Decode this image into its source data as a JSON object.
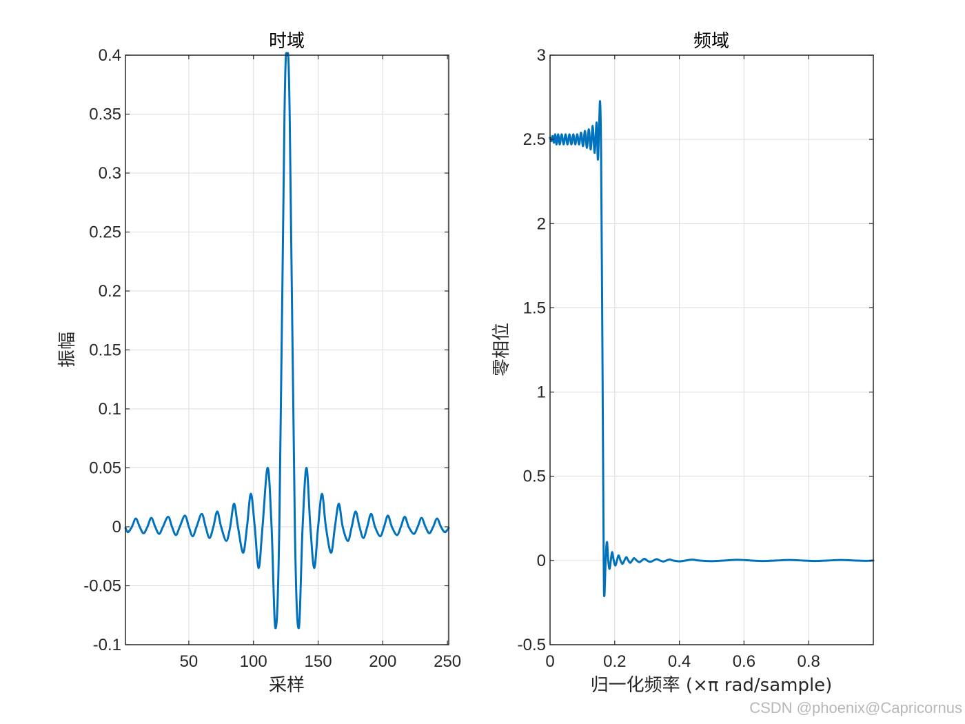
{
  "chart_data": [
    {
      "type": "line",
      "title": "时域",
      "xlabel": "采样",
      "ylabel": "振幅",
      "xlim": [
        1,
        251
      ],
      "ylim": [
        -0.1,
        0.4
      ],
      "xticks": [
        50,
        100,
        150,
        200,
        250
      ],
      "yticks": [
        -0.1,
        -0.05,
        0,
        0.05,
        0.1,
        0.15,
        0.2,
        0.25,
        0.3,
        0.35,
        0.4
      ],
      "ytick_labels": [
        "-0.1",
        "-0.05",
        "0",
        "0.05",
        "0.1",
        "0.15",
        "0.2",
        "0.25",
        "0.3",
        "0.35",
        "0.4"
      ],
      "xtick_labels": [
        "50",
        "100",
        "150",
        "200",
        "250"
      ],
      "grid": true,
      "series_color": "#0072BD",
      "series": [
        {
          "points": [
            [
              1,
              -0.001
            ],
            [
              3,
              -0.0045
            ],
            [
              6,
              0.0
            ],
            [
              9,
              0.007
            ],
            [
              12,
              0.0
            ],
            [
              15,
              -0.0055
            ],
            [
              18,
              0.0
            ],
            [
              21,
              0.0075
            ],
            [
              24,
              0.0
            ],
            [
              27,
              -0.006
            ],
            [
              30,
              0.0
            ],
            [
              34,
              0.0085
            ],
            [
              37,
              0.0
            ],
            [
              40,
              -0.007
            ],
            [
              43,
              0.0
            ],
            [
              47,
              0.0095
            ],
            [
              50,
              0.0
            ],
            [
              53,
              -0.008
            ],
            [
              56,
              0.0
            ],
            [
              60,
              0.011
            ],
            [
              63,
              0.0
            ],
            [
              66,
              -0.0095
            ],
            [
              69,
              0.0
            ],
            [
              72,
              0.013
            ],
            [
              75,
              0.0
            ],
            [
              79,
              -0.012
            ],
            [
              82,
              0.0
            ],
            [
              85,
              0.0195
            ],
            [
              88,
              0.0
            ],
            [
              92,
              -0.022
            ],
            [
              95,
              0.0
            ],
            [
              98,
              0.028
            ],
            [
              101,
              0.0
            ],
            [
              104,
              -0.035
            ],
            [
              107,
              0.0
            ],
            [
              111,
              0.05
            ],
            [
              114,
              0.0
            ],
            [
              117,
              -0.086
            ],
            [
              120,
              0.0
            ],
            [
              124,
              0.35
            ],
            [
              126,
              0.4
            ],
            [
              128,
              0.35
            ],
            [
              132,
              0.0
            ],
            [
              135,
              -0.086
            ],
            [
              138,
              0.0
            ],
            [
              141,
              0.05
            ],
            [
              144,
              0.0
            ],
            [
              147,
              -0.035
            ],
            [
              150,
              0.0
            ],
            [
              153,
              0.028
            ],
            [
              156,
              0.0
            ],
            [
              160,
              -0.022
            ],
            [
              163,
              0.0
            ],
            [
              166,
              0.0195
            ],
            [
              169,
              0.0
            ],
            [
              173,
              -0.012
            ],
            [
              176,
              0.0
            ],
            [
              179,
              0.013
            ],
            [
              182,
              0.0
            ],
            [
              185,
              -0.0095
            ],
            [
              188,
              0.0
            ],
            [
              191,
              0.011
            ],
            [
              194,
              0.0
            ],
            [
              198,
              -0.008
            ],
            [
              201,
              0.0
            ],
            [
              204,
              0.0095
            ],
            [
              207,
              0.0
            ],
            [
              211,
              -0.007
            ],
            [
              214,
              0.0
            ],
            [
              217,
              0.0085
            ],
            [
              220,
              0.0
            ],
            [
              224,
              -0.006
            ],
            [
              227,
              0.0
            ],
            [
              230,
              0.0075
            ],
            [
              233,
              0.0
            ],
            [
              236,
              -0.0055
            ],
            [
              239,
              0.0
            ],
            [
              242,
              0.007
            ],
            [
              245,
              0.0
            ],
            [
              248,
              -0.0045
            ],
            [
              251,
              -0.001
            ]
          ]
        }
      ]
    },
    {
      "type": "line",
      "title": "频域",
      "xlabel": "归一化频率  (×π rad/sample)",
      "ylabel": "零相位",
      "xlim": [
        0,
        1
      ],
      "ylim": [
        -0.5,
        3
      ],
      "xticks": [
        0,
        0.2,
        0.4,
        0.6,
        0.8
      ],
      "xtick_labels": [
        "0",
        "0.2",
        "0.4",
        "0.6",
        "0.8"
      ],
      "yticks": [
        -0.5,
        0,
        0.5,
        1,
        1.5,
        2,
        2.5,
        3
      ],
      "ytick_labels": [
        "-0.5",
        "0",
        "0.5",
        "1",
        "1.5",
        "2",
        "2.5",
        "3"
      ],
      "grid": true,
      "series_color": "#0072BD",
      "series": [
        {
          "points": [
            [
              0,
              2.51
            ],
            [
              0.004,
              2.49
            ],
            [
              0.008,
              2.52
            ],
            [
              0.012,
              2.48
            ],
            [
              0.016,
              2.53
            ],
            [
              0.02,
              2.47
            ],
            [
              0.025,
              2.53
            ],
            [
              0.03,
              2.47
            ],
            [
              0.036,
              2.53
            ],
            [
              0.042,
              2.47
            ],
            [
              0.048,
              2.53
            ],
            [
              0.054,
              2.47
            ],
            [
              0.06,
              2.53
            ],
            [
              0.066,
              2.47
            ],
            [
              0.072,
              2.53
            ],
            [
              0.078,
              2.47
            ],
            [
              0.084,
              2.53
            ],
            [
              0.09,
              2.47
            ],
            [
              0.096,
              2.54
            ],
            [
              0.102,
              2.46
            ],
            [
              0.108,
              2.55
            ],
            [
              0.114,
              2.45
            ],
            [
              0.12,
              2.56
            ],
            [
              0.126,
              2.44
            ],
            [
              0.132,
              2.58
            ],
            [
              0.138,
              2.42
            ],
            [
              0.144,
              2.6
            ],
            [
              0.148,
              2.38
            ],
            [
              0.152,
              2.6
            ],
            [
              0.155,
              2.72
            ],
            [
              0.158,
              2.4
            ],
            [
              0.162,
              1.25
            ],
            [
              0.166,
              0.0
            ],
            [
              0.168,
              -0.21
            ],
            [
              0.172,
              0.0
            ],
            [
              0.176,
              0.11
            ],
            [
              0.18,
              0.0
            ],
            [
              0.184,
              -0.05
            ],
            [
              0.188,
              0.0
            ],
            [
              0.192,
              0.05
            ],
            [
              0.197,
              0.0
            ],
            [
              0.202,
              -0.03
            ],
            [
              0.207,
              0.0
            ],
            [
              0.212,
              0.03
            ],
            [
              0.218,
              0.0
            ],
            [
              0.224,
              -0.02
            ],
            [
              0.23,
              0.0
            ],
            [
              0.236,
              0.02
            ],
            [
              0.242,
              0.0
            ],
            [
              0.248,
              -0.014
            ],
            [
              0.254,
              0.0
            ],
            [
              0.26,
              0.014
            ],
            [
              0.268,
              0.0
            ],
            [
              0.276,
              -0.01
            ],
            [
              0.284,
              0.0
            ],
            [
              0.292,
              0.01
            ],
            [
              0.3,
              0.0
            ],
            [
              0.31,
              -0.008
            ],
            [
              0.32,
              0.0
            ],
            [
              0.33,
              0.008
            ],
            [
              0.34,
              0.0
            ],
            [
              0.35,
              -0.006
            ],
            [
              0.36,
              0.0
            ],
            [
              0.37,
              0.006
            ],
            [
              0.38,
              0.0
            ],
            [
              0.4,
              -0.005
            ],
            [
              0.42,
              0.0
            ],
            [
              0.44,
              0.005
            ],
            [
              0.46,
              0.0
            ],
            [
              0.5,
              -0.004
            ],
            [
              0.54,
              0.0
            ],
            [
              0.58,
              0.004
            ],
            [
              0.62,
              0.0
            ],
            [
              0.66,
              -0.003
            ],
            [
              0.7,
              0.0
            ],
            [
              0.74,
              0.003
            ],
            [
              0.78,
              0.0
            ],
            [
              0.82,
              -0.003
            ],
            [
              0.86,
              0.0
            ],
            [
              0.9,
              0.003
            ],
            [
              0.94,
              0.0
            ],
            [
              0.98,
              -0.002
            ],
            [
              1.0,
              0.0
            ]
          ]
        }
      ]
    }
  ],
  "watermark": "CSDN @phoenix@Capricornus",
  "colors": {
    "line": "#0072BD",
    "grid": "#dcdcdc",
    "axes": "#262626"
  }
}
